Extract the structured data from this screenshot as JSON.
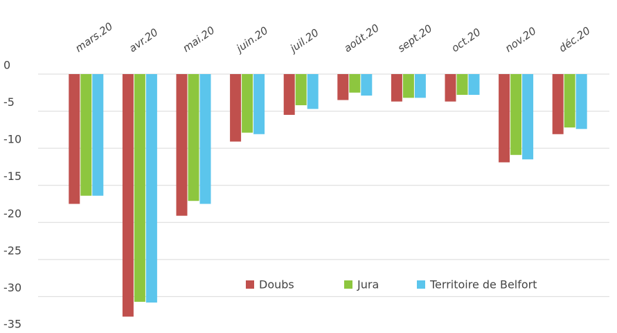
{
  "chart_data": {
    "type": "bar",
    "categories": [
      "mars.20",
      "avr.20",
      "mai.20",
      "juin.20",
      "juil.20",
      "août.20",
      "sept.20",
      "oct.20",
      "nov.20",
      "déc.20"
    ],
    "series": [
      {
        "name": "Doubs",
        "color": "#c0504d",
        "values": [
          -17.5,
          -32.7,
          -19.1,
          -9.1,
          -5.5,
          -3.5,
          -3.7,
          -3.7,
          -11.9,
          -8.1
        ]
      },
      {
        "name": "Jura",
        "color": "#8dc63f",
        "values": [
          -16.4,
          -30.7,
          -17.1,
          -7.9,
          -4.2,
          -2.5,
          -3.2,
          -2.8,
          -10.9,
          -7.2
        ]
      },
      {
        "name": "Territoire de Belfort",
        "color": "#5bc5ec",
        "values": [
          -16.4,
          -30.8,
          -17.5,
          -8.1,
          -4.7,
          -2.9,
          -3.2,
          -2.8,
          -11.5,
          -7.4
        ]
      }
    ],
    "ylim": [
      -35,
      0
    ],
    "yticks": [
      0,
      -5,
      -10,
      -15,
      -20,
      -25,
      -30,
      -35
    ],
    "grid": true,
    "legend": "bottom"
  }
}
